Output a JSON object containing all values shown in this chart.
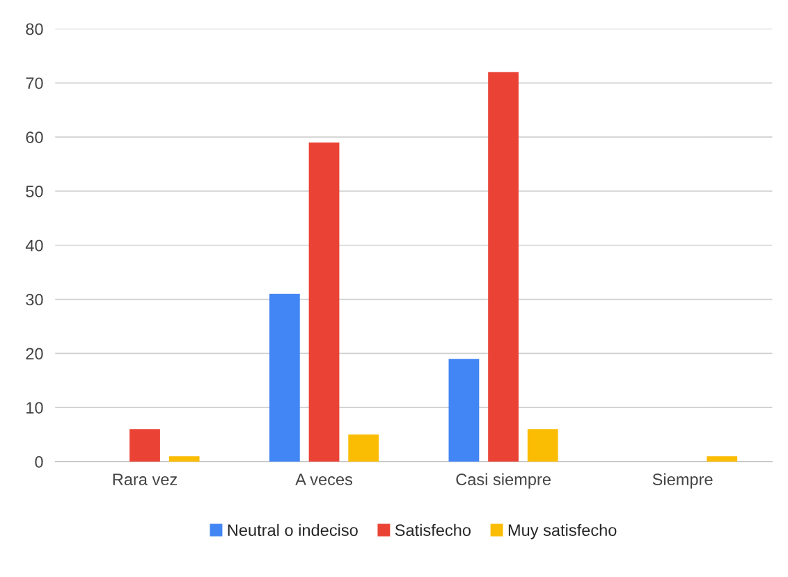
{
  "chart_data": {
    "type": "bar",
    "categories": [
      "Rara vez",
      "A veces",
      "Casi siempre",
      "Siempre"
    ],
    "series": [
      {
        "name": "Neutral o indeciso",
        "color": "#4285f4",
        "values": [
          0,
          31,
          19,
          0
        ]
      },
      {
        "name": "Satisfecho",
        "color": "#ea4335",
        "values": [
          6,
          59,
          72,
          0
        ]
      },
      {
        "name": "Muy satisfecho",
        "color": "#fbbc04",
        "values": [
          1,
          5,
          6,
          1
        ]
      }
    ],
    "ylim": [
      0,
      80
    ],
    "yticks": [
      0,
      10,
      20,
      30,
      40,
      50,
      60,
      70,
      80
    ],
    "grid": "y",
    "legend": "bottom"
  }
}
